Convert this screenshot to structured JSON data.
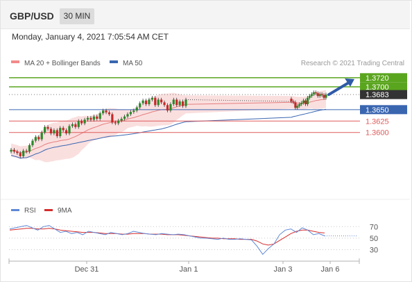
{
  "header": {
    "symbol": "GBP/USD",
    "timeframe": "30 MIN"
  },
  "datetime": "Monday, January 4, 2021 7:05:54 AM CET",
  "legend": {
    "bb": "MA 20 + Bollinger Bands",
    "ma": "MA 50"
  },
  "credit": "Research © 2021 Trading Central",
  "rsi_legend": {
    "rsi": "RSI",
    "ma": "9MA"
  },
  "colors": {
    "resistance": "#5aa51e",
    "pivot": "#3a66b0",
    "support": "#e05a5a",
    "candle_up": "#2b8a2b",
    "candle_down": "#c62828",
    "last": "#333333",
    "rsi": "#5f88d6",
    "rsi_ma": "#d62b2b",
    "bollinger": "#f7c9c9",
    "ma20": "#e57e7e",
    "ma50": "#3a66b0"
  },
  "chart_data": [
    {
      "type": "line",
      "title": "",
      "x_labels": [
        "Dec 31",
        "Jan 1",
        "Jan 3",
        "Jan 6"
      ],
      "ylim": [
        1.3455,
        1.3735
      ],
      "levels": [
        {
          "label": "1.3720",
          "value": 1.372,
          "kind": "resistance"
        },
        {
          "label": "1.3700",
          "value": 1.37,
          "kind": "resistance"
        },
        {
          "label": "1.3683",
          "value": 1.3683,
          "kind": "last"
        },
        {
          "label": "1.3650",
          "value": 1.365,
          "kind": "pivot"
        },
        {
          "label": "1.3625",
          "value": 1.3625,
          "kind": "support"
        },
        {
          "label": "1.3600",
          "value": 1.36,
          "kind": "support"
        }
      ],
      "series": [
        {
          "type": "candlestick",
          "values": [
            1.3562,
            1.3558,
            1.3555,
            1.3548,
            1.356,
            1.3558,
            1.3572,
            1.3582,
            1.359,
            1.3585,
            1.36,
            1.3612,
            1.3608,
            1.3598,
            1.3605,
            1.3592,
            1.361,
            1.3605,
            1.3598,
            1.3614,
            1.3618,
            1.3612,
            1.3625,
            1.362,
            1.3628,
            1.3632,
            1.3628,
            1.3635,
            1.363,
            1.3642,
            1.3648,
            1.3644,
            1.364,
            1.3622,
            1.362,
            1.3626,
            1.363,
            1.3635,
            1.364,
            1.3645,
            1.3648,
            1.3655,
            1.3664,
            1.367,
            1.3662,
            1.3672,
            1.3676,
            1.366,
            1.3672,
            1.3666,
            1.366,
            1.3648,
            1.3662,
            1.3672,
            1.366,
            1.3668,
            1.3658,
            1.3672,
            1.3662,
            1.367,
            1.3664,
            1.3672,
            1.3666,
            1.3674,
            1.3668,
            1.3666,
            1.3654,
            1.3658,
            1.3662,
            1.3665,
            1.367,
            1.3662,
            1.3676,
            1.368,
            1.3684,
            1.3688,
            1.3686,
            1.368,
            1.3684,
            1.3682,
            1.3676,
            1.3683
          ]
        },
        {
          "name": "MA 20 + Bollinger Bands"
        },
        {
          "name": "MA 50"
        }
      ],
      "forecast": {
        "from": 1.3683,
        "to": 1.372
      }
    },
    {
      "type": "line",
      "title": "",
      "ylim": [
        15,
        80
      ],
      "yticks": [
        "70",
        "50",
        "30"
      ],
      "series": [
        {
          "name": "RSI",
          "values": [
            66,
            68,
            70,
            72,
            68,
            64,
            70,
            72,
            66,
            60,
            62,
            58,
            60,
            56,
            62,
            60,
            58,
            56,
            60,
            58,
            56,
            58,
            62,
            60,
            58,
            57,
            56,
            58,
            57,
            56,
            57,
            56,
            54,
            52,
            50,
            50,
            49,
            48,
            50,
            48,
            48,
            49,
            48,
            47,
            36,
            22,
            32,
            40,
            56,
            64,
            66,
            60,
            68,
            64,
            56,
            58,
            54
          ]
        },
        {
          "name": "9MA",
          "values": [
            64,
            65,
            66,
            67,
            67,
            66,
            66,
            67,
            66,
            64,
            63,
            62,
            61,
            60,
            60,
            60,
            59,
            58,
            58,
            58,
            57,
            57,
            58,
            58,
            58,
            57,
            57,
            57,
            56,
            56,
            56,
            55,
            54,
            53,
            52,
            51,
            50,
            50,
            49,
            49,
            49,
            48,
            48,
            48,
            45,
            40,
            38,
            40,
            46,
            52,
            58,
            62,
            64,
            64,
            62,
            60,
            59
          ]
        }
      ]
    }
  ]
}
